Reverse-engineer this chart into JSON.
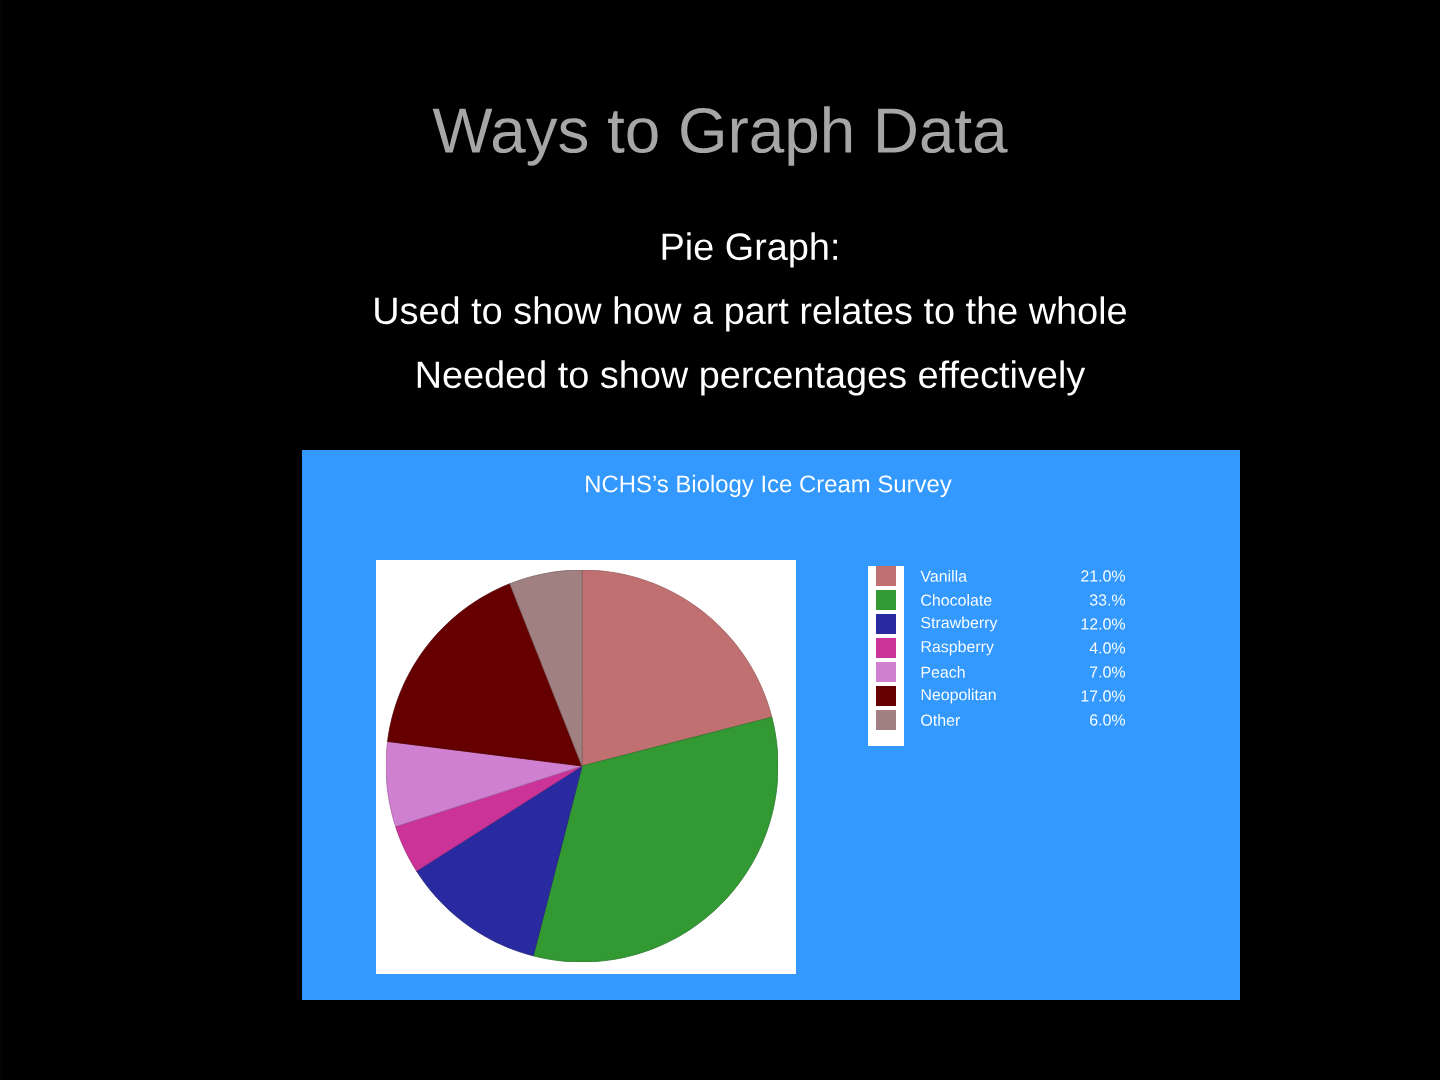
{
  "chart_data": {
    "type": "pie",
    "title": "Ways to Graph Data",
    "subtitle": "NCHS’s Biology Ice Cream Survey",
    "annotations": [
      "Pie Graph:",
      "Used to show how a part relates to the whole",
      "Needed to show percentages effectively"
    ],
    "categories": [
      "Vanilla",
      "Chocolate",
      "Strawberry",
      "Raspberry",
      "Peach",
      "Neopolitan",
      "Other"
    ],
    "values": [
      21,
      33,
      12,
      4,
      7,
      17,
      6
    ],
    "value_labels": [
      "21.0%",
      "33.%",
      "12.0%",
      "4.0%",
      "7.0%",
      "17.0%",
      "6.0%"
    ],
    "colors": [
      "#c07070",
      "#339933",
      "#2a2aa0",
      "#cc3399",
      "#d080d0",
      "#660000",
      "#a08080"
    ],
    "legend": "right"
  }
}
